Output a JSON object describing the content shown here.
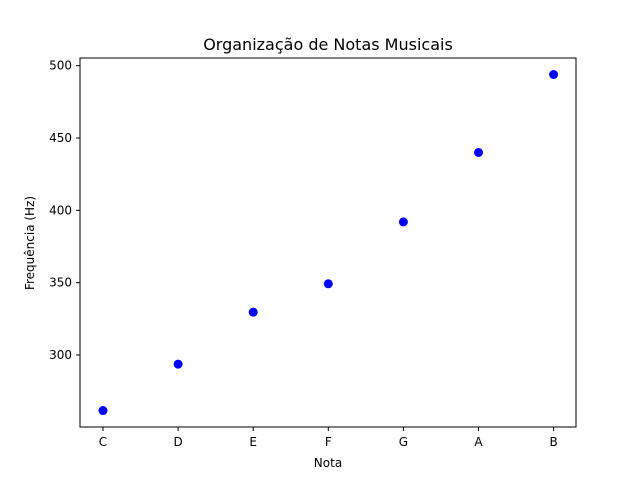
{
  "chart_data": {
    "type": "scatter",
    "title": "Organização de Notas Musicais",
    "xlabel": "Nota",
    "ylabel": "Frequência (Hz)",
    "categories": [
      "C",
      "D",
      "E",
      "F",
      "G",
      "A",
      "B"
    ],
    "series": [
      {
        "values": [
          261.63,
          293.66,
          329.63,
          349.23,
          392.0,
          440.0,
          493.88
        ],
        "color": "#0000ff",
        "marker": "circle"
      }
    ],
    "ylim": [
      250,
      505
    ],
    "yticks": [
      300,
      350,
      400,
      450,
      500
    ],
    "grid": false,
    "legend": "none"
  }
}
